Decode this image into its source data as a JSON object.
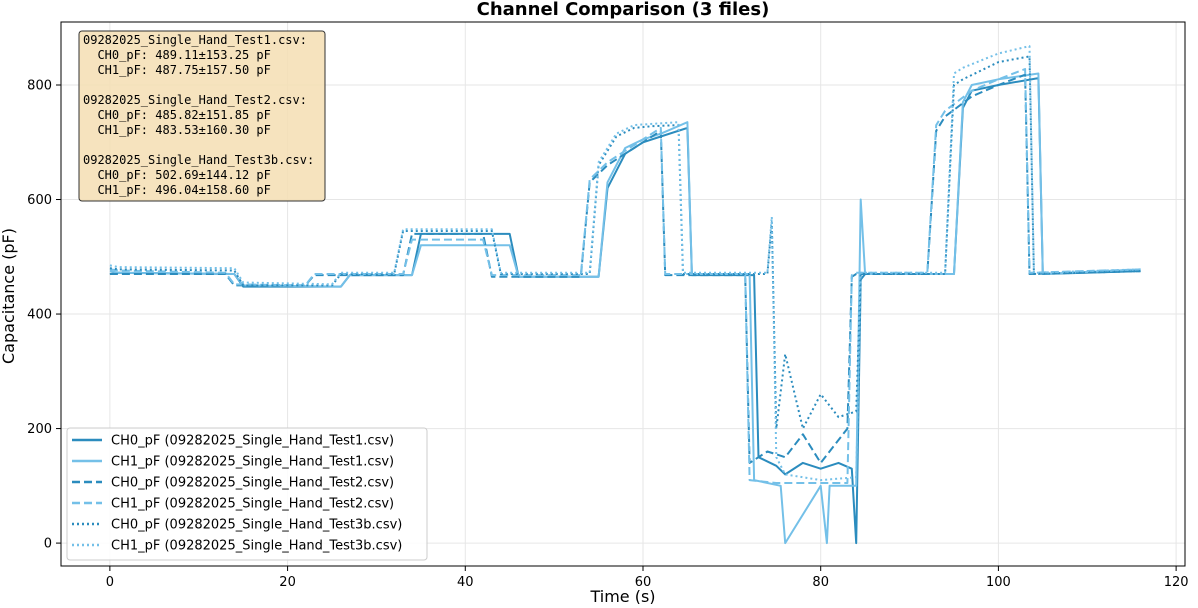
{
  "chart_data": {
    "type": "line",
    "title": "Channel Comparison (3 files)",
    "xlabel": "Time (s)",
    "ylabel": "Capacitance (pF)",
    "xlim": [
      -5.5,
      121
    ],
    "ylim": [
      -40,
      910
    ],
    "x_ticks": [
      0,
      20,
      40,
      60,
      80,
      100,
      120
    ],
    "y_ticks": [
      0,
      200,
      400,
      600,
      800
    ],
    "grid": true,
    "legend_position": "lower-left",
    "stats_box": {
      "position": "top-left",
      "lines": [
        "09282025_Single_Hand_Test1.csv:",
        "  CH0_pF: 489.11±153.25 pF",
        "  CH1_pF: 487.75±157.50 pF",
        "",
        "09282025_Single_Hand_Test2.csv:",
        "  CH0_pF: 485.82±151.85 pF",
        "  CH1_pF: 483.53±160.30 pF",
        "",
        "09282025_Single_Hand_Test3b.csv:",
        "  CH0_pF: 502.69±144.12 pF",
        "  CH1_pF: 496.04±158.60 pF"
      ]
    },
    "series": [
      {
        "name": "CH0_pF (09282025_Single_Hand_Test1.csv)",
        "color": "#2b8cbe",
        "dash": "solid",
        "x": [
          0,
          1,
          14,
          15,
          26,
          27,
          34,
          35,
          45,
          46,
          55,
          56,
          58,
          60,
          62,
          65,
          65.5,
          72,
          72.5,
          73,
          75,
          76,
          78,
          80,
          82,
          83.5,
          84,
          84.5,
          85,
          95,
          96,
          97,
          100,
          104.5,
          105,
          116
        ],
        "y": [
          470,
          472,
          470,
          448,
          448,
          468,
          468,
          540,
          540,
          465,
          465,
          620,
          680,
          700,
          710,
          725,
          468,
          468,
          468,
          150,
          135,
          120,
          140,
          130,
          140,
          130,
          0,
          460,
          470,
          470,
          760,
          790,
          800,
          812,
          470,
          475
        ]
      },
      {
        "name": "CH1_pF (09282025_Single_Hand_Test1.csv)",
        "color": "#74c0e8",
        "dash": "solid",
        "x": [
          0,
          1,
          14,
          15,
          26,
          27,
          34,
          35,
          45,
          46,
          55,
          56,
          58,
          60,
          62,
          65,
          65.5,
          72,
          72.5,
          75.5,
          76,
          80,
          80.7,
          81,
          84,
          84.5,
          85,
          95,
          96,
          97,
          100,
          104.5,
          105,
          116
        ],
        "y": [
          475,
          472,
          470,
          450,
          448,
          468,
          468,
          520,
          520,
          465,
          465,
          630,
          690,
          705,
          715,
          735,
          470,
          470,
          110,
          100,
          0,
          100,
          0,
          100,
          100,
          600,
          470,
          470,
          770,
          800,
          810,
          820,
          470,
          478
        ]
      },
      {
        "name": "CH0_pF (09282025_Single_Hand_Test2.csv)",
        "color": "#2b8cbe",
        "dash": "dashed",
        "x": [
          0,
          1,
          13,
          14,
          22,
          23,
          33,
          34,
          42,
          43,
          53,
          54,
          56,
          58,
          60,
          62,
          62.5,
          71,
          71.5,
          72,
          74,
          76,
          78,
          80,
          82,
          83,
          83.5,
          84,
          92,
          93,
          94,
          97,
          100,
          103,
          103.5,
          116
        ],
        "y": [
          470,
          470,
          470,
          450,
          450,
          468,
          468,
          540,
          540,
          465,
          465,
          630,
          660,
          680,
          700,
          720,
          468,
          468,
          468,
          140,
          160,
          150,
          190,
          140,
          180,
          200,
          465,
          470,
          470,
          720,
          745,
          780,
          800,
          818,
          470,
          475
        ]
      },
      {
        "name": "CH1_pF (09282025_Single_Hand_Test2.csv)",
        "color": "#74c0e8",
        "dash": "dashed",
        "x": [
          0,
          1,
          13,
          14,
          22,
          23,
          33,
          34,
          42,
          43,
          53,
          54,
          56,
          58,
          60,
          62,
          62.5,
          71,
          71.5,
          72,
          75,
          80,
          83,
          83.5,
          84,
          92,
          93,
          94,
          97,
          100,
          103,
          103.5,
          116
        ],
        "y": [
          478,
          476,
          472,
          452,
          450,
          470,
          470,
          530,
          530,
          468,
          468,
          635,
          665,
          685,
          705,
          725,
          470,
          470,
          470,
          110,
          105,
          105,
          105,
          468,
          472,
          472,
          730,
          755,
          790,
          810,
          828,
          472,
          478
        ]
      },
      {
        "name": "CH0_pF (09282025_Single_Hand_Test3b.csv)",
        "color": "#2b8cbe",
        "dash": "dotted",
        "x": [
          0,
          1,
          14,
          15,
          25,
          26,
          32,
          33,
          43,
          44,
          54,
          55,
          57,
          59,
          61,
          64,
          64.5,
          74,
          74.5,
          75,
          76,
          78,
          80,
          82,
          84,
          84.5,
          85,
          94,
          95,
          96,
          100,
          103.5,
          104,
          116
        ],
        "y": [
          480,
          478,
          476,
          450,
          450,
          470,
          470,
          545,
          545,
          470,
          470,
          660,
          710,
          725,
          728,
          730,
          470,
          470,
          560,
          200,
          330,
          200,
          260,
          220,
          230,
          470,
          470,
          470,
          800,
          810,
          840,
          850,
          470,
          475
        ]
      },
      {
        "name": "CH1_pF (09282025_Single_Hand_Test3b.csv)",
        "color": "#74c0e8",
        "dash": "dotted",
        "x": [
          0,
          1,
          14,
          15,
          25,
          26,
          32,
          33,
          43,
          44,
          54,
          55,
          57,
          59,
          61,
          64,
          64.5,
          74,
          74.5,
          75,
          76,
          80,
          84,
          84.5,
          85,
          94,
          95,
          96,
          100,
          103.5,
          104,
          116
        ],
        "y": [
          485,
          482,
          480,
          455,
          452,
          472,
          472,
          548,
          548,
          472,
          472,
          665,
          715,
          730,
          732,
          735,
          472,
          472,
          570,
          150,
          120,
          110,
          115,
          472,
          472,
          472,
          820,
          830,
          855,
          868,
          472,
          478
        ]
      }
    ]
  }
}
